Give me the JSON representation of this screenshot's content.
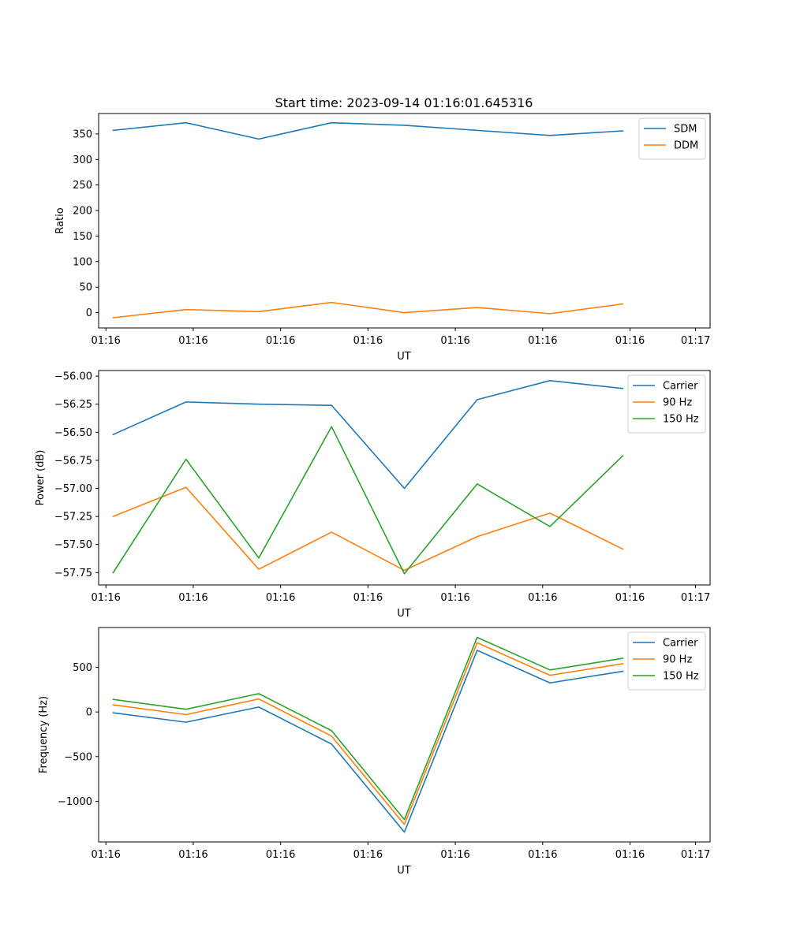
{
  "chart_data": [
    {
      "type": "line",
      "title": "Start time: 2023-09-14 01:16:01.645316",
      "xlabel": "UT",
      "ylabel": "Ratio",
      "xtick_labels": [
        "01:16",
        "01:16",
        "01:16",
        "01:16",
        "01:16",
        "01:16",
        "01:16"
      ],
      "xtick_last_label": "01:17",
      "x": [
        1,
        2,
        3,
        4,
        5,
        6,
        7,
        8
      ],
      "xlim": [
        0.8,
        9.2
      ],
      "yticks": [
        0,
        50,
        100,
        150,
        200,
        250,
        300,
        350
      ],
      "ylim": [
        -30,
        390
      ],
      "legend": "top-right",
      "series": [
        {
          "name": "SDM",
          "color": "#1f77b4",
          "values": [
            357,
            372,
            340,
            372,
            367,
            357,
            347,
            356
          ]
        },
        {
          "name": "DDM",
          "color": "#ff7f0e",
          "values": [
            -10,
            6,
            2,
            20,
            0,
            10,
            -2,
            17
          ]
        }
      ]
    },
    {
      "type": "line",
      "title": "",
      "xlabel": "UT",
      "ylabel": "Power (dB)",
      "xtick_labels": [
        "01:16",
        "01:16",
        "01:16",
        "01:16",
        "01:16",
        "01:16",
        "01:16"
      ],
      "xtick_last_label": "01:17",
      "x": [
        1,
        2,
        3,
        4,
        5,
        6,
        7,
        8
      ],
      "xlim": [
        0.8,
        9.2
      ],
      "yticks": [
        -57.75,
        -57.5,
        -57.25,
        -57.0,
        -56.75,
        -56.5,
        -56.25,
        -56.0
      ],
      "ytick_labels": [
        "−57.75",
        "−57.50",
        "−57.25",
        "−57.00",
        "−56.75",
        "−56.50",
        "−56.25",
        "−56.00"
      ],
      "ylim": [
        -57.86,
        -55.95
      ],
      "legend": "top-right",
      "series": [
        {
          "name": "Carrier",
          "color": "#1f77b4",
          "values": [
            -56.52,
            -56.23,
            -56.25,
            -56.26,
            -57.0,
            -56.21,
            -56.04,
            -56.11
          ]
        },
        {
          "name": "90 Hz",
          "color": "#ff7f0e",
          "values": [
            -57.25,
            -56.99,
            -57.72,
            -57.39,
            -57.73,
            -57.43,
            -57.22,
            -57.54
          ]
        },
        {
          "name": "150 Hz",
          "color": "#2ca02c",
          "values": [
            -57.75,
            -56.74,
            -57.62,
            -56.45,
            -57.76,
            -56.96,
            -57.34,
            -56.71
          ]
        }
      ]
    },
    {
      "type": "line",
      "title": "",
      "xlabel": "UT",
      "ylabel": "Frequency (Hz)",
      "xtick_labels": [
        "01:16",
        "01:16",
        "01:16",
        "01:16",
        "01:16",
        "01:16",
        "01:16"
      ],
      "xtick_last_label": "01:17",
      "x": [
        1,
        2,
        3,
        4,
        5,
        6,
        7,
        8
      ],
      "xlim": [
        0.8,
        9.2
      ],
      "yticks": [
        -1000,
        -500,
        0,
        500
      ],
      "ytick_labels": [
        "−1000",
        "−500",
        "0",
        "500"
      ],
      "ylim": [
        -1455,
        945
      ],
      "legend": "top-right",
      "series": [
        {
          "name": "Carrier",
          "color": "#1f77b4",
          "values": [
            -10,
            -115,
            55,
            -360,
            -1345,
            690,
            325,
            455
          ]
        },
        {
          "name": "90 Hz",
          "color": "#ff7f0e",
          "values": [
            80,
            -30,
            145,
            -270,
            -1260,
            775,
            410,
            540
          ]
        },
        {
          "name": "150 Hz",
          "color": "#2ca02c",
          "values": [
            140,
            30,
            205,
            -210,
            -1205,
            835,
            470,
            600
          ]
        }
      ]
    }
  ]
}
